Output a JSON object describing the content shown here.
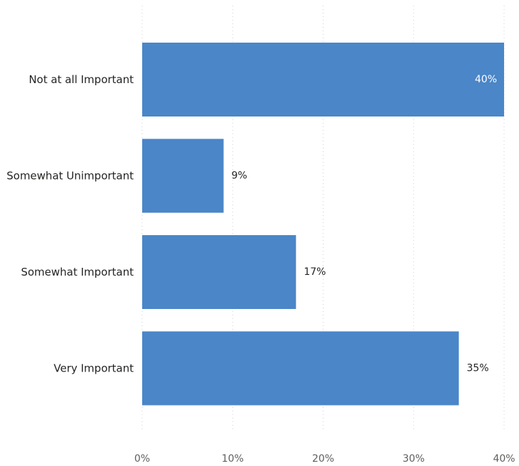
{
  "chart_data": {
    "type": "bar",
    "orientation": "horizontal",
    "categories": [
      "Not at all Important",
      "Somewhat Unimportant",
      "Somewhat Important",
      "Very Important"
    ],
    "values": [
      40,
      9,
      17,
      35
    ],
    "data_labels": [
      "40%",
      "9%",
      "17%",
      "35%"
    ],
    "xlim": [
      0,
      40
    ],
    "x_ticks": [
      0,
      10,
      20,
      30,
      40
    ],
    "x_tick_labels": [
      "0%",
      "10%",
      "20%",
      "30%",
      "40%"
    ],
    "title": "",
    "xlabel": "",
    "ylabel": "",
    "grid": "vertical-dotted",
    "legend": "none",
    "colors": {
      "bar": "#4a86c8",
      "label_inside": "#ffffff",
      "label_outside": "#252423"
    }
  }
}
